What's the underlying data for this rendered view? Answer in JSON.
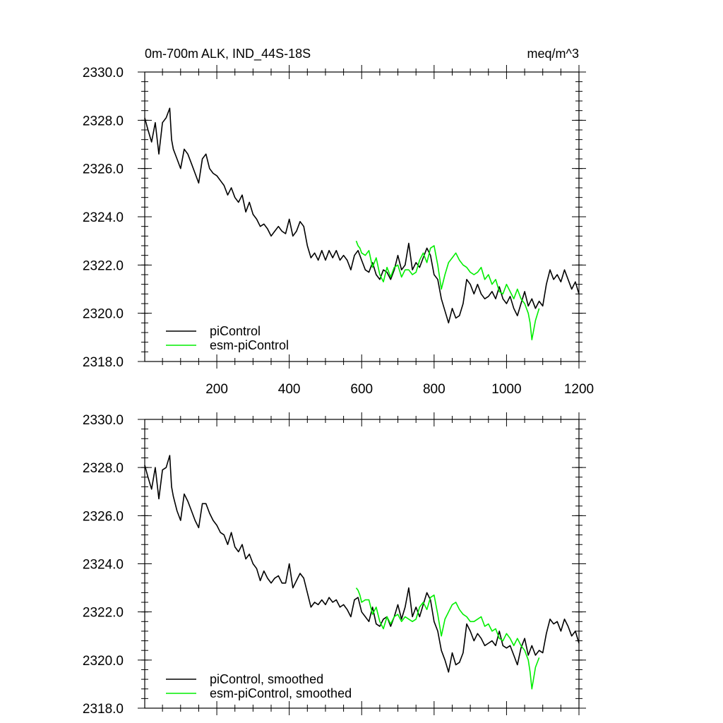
{
  "chart_data": [
    {
      "type": "line",
      "title": "0m-700m ALK, IND_44S-18S",
      "units": "meq/m^3",
      "xlim": [
        1,
        1200
      ],
      "ylim": [
        2318.0,
        2330.0
      ],
      "x_ticks": [
        200,
        400,
        600,
        800,
        1000,
        1200
      ],
      "y_ticks": [
        "2318.0",
        "2320.0",
        "2322.0",
        "2324.0",
        "2326.0",
        "2328.0",
        "2330.0"
      ],
      "grid": false,
      "legend_position": "bottom-left",
      "series": [
        {
          "name": "piControl",
          "color": "#000000",
          "x": [
            1,
            10,
            20,
            30,
            40,
            50,
            60,
            70,
            75,
            80,
            90,
            100,
            110,
            120,
            130,
            140,
            150,
            160,
            170,
            180,
            190,
            200,
            210,
            220,
            230,
            240,
            250,
            260,
            270,
            280,
            290,
            300,
            310,
            320,
            330,
            340,
            350,
            360,
            370,
            380,
            390,
            400,
            410,
            420,
            430,
            440,
            450,
            460,
            470,
            480,
            490,
            500,
            510,
            520,
            530,
            540,
            550,
            560,
            570,
            580,
            590,
            600,
            610,
            620,
            630,
            640,
            650,
            660,
            670,
            680,
            690,
            700,
            710,
            720,
            730,
            740,
            750,
            760,
            770,
            780,
            790,
            800,
            810,
            820,
            830,
            840,
            850,
            860,
            870,
            880,
            890,
            900,
            910,
            920,
            930,
            940,
            950,
            960,
            970,
            980,
            990,
            1000,
            1010,
            1020,
            1030,
            1040,
            1050,
            1060,
            1070,
            1080,
            1090,
            1100,
            1110,
            1120,
            1130,
            1140,
            1150,
            1160,
            1170,
            1180,
            1190,
            1200
          ],
          "y": [
            2328.1,
            2327.6,
            2327.1,
            2327.9,
            2326.6,
            2327.9,
            2328.1,
            2328.5,
            2327.2,
            2326.8,
            2326.4,
            2326.0,
            2326.8,
            2326.6,
            2326.2,
            2325.8,
            2325.4,
            2326.4,
            2326.6,
            2326.0,
            2325.8,
            2325.7,
            2325.5,
            2325.3,
            2324.9,
            2325.2,
            2324.8,
            2324.6,
            2324.9,
            2324.2,
            2324.6,
            2324.1,
            2323.9,
            2323.6,
            2323.7,
            2323.5,
            2323.2,
            2323.4,
            2323.6,
            2323.4,
            2323.3,
            2323.9,
            2323.2,
            2323.4,
            2323.8,
            2323.6,
            2322.8,
            2322.3,
            2322.5,
            2322.2,
            2322.6,
            2322.2,
            2322.6,
            2322.3,
            2322.6,
            2322.2,
            2322.4,
            2322.2,
            2321.8,
            2322.4,
            2322.6,
            2322.2,
            2321.8,
            2321.7,
            2322.1,
            2321.6,
            2321.4,
            2321.8,
            2321.7,
            2321.4,
            2321.8,
            2322.4,
            2321.8,
            2322.0,
            2322.9,
            2321.8,
            2322.1,
            2321.9,
            2322.3,
            2322.7,
            2322.4,
            2321.6,
            2321.4,
            2320.6,
            2320.1,
            2319.6,
            2320.2,
            2319.8,
            2319.9,
            2320.4,
            2321.4,
            2321.2,
            2320.8,
            2321.2,
            2320.8,
            2320.6,
            2320.7,
            2320.9,
            2320.6,
            2321.1,
            2320.6,
            2320.4,
            2320.7,
            2320.2,
            2319.9,
            2320.4,
            2320.9,
            2320.3,
            2320.6,
            2320.2,
            2320.5,
            2320.3,
            2321.2,
            2321.8,
            2321.4,
            2321.6,
            2321.3,
            2321.8,
            2321.4,
            2321.0,
            2321.3,
            2320.8
          ]
        },
        {
          "name": "esm-piControl",
          "color": "#00ee00",
          "x": [
            585,
            590,
            595,
            600,
            610,
            620,
            630,
            640,
            650,
            660,
            670,
            680,
            690,
            700,
            710,
            720,
            730,
            740,
            750,
            760,
            770,
            780,
            790,
            800,
            810,
            820,
            830,
            840,
            850,
            860,
            870,
            880,
            890,
            900,
            910,
            920,
            930,
            940,
            950,
            960,
            970,
            980,
            990,
            1000,
            1010,
            1020,
            1030,
            1040,
            1050,
            1060,
            1065,
            1070,
            1080,
            1090
          ],
          "y": [
            2323.0,
            2322.8,
            2322.7,
            2322.5,
            2322.4,
            2322.6,
            2321.9,
            2322.3,
            2321.6,
            2321.3,
            2321.9,
            2321.5,
            2321.9,
            2322.0,
            2321.5,
            2321.8,
            2321.8,
            2321.6,
            2321.7,
            2322.2,
            2322.5,
            2322.1,
            2322.7,
            2322.8,
            2322.0,
            2321.0,
            2321.6,
            2322.1,
            2322.3,
            2322.5,
            2322.2,
            2322.0,
            2321.9,
            2321.7,
            2321.6,
            2321.7,
            2321.9,
            2321.4,
            2321.6,
            2321.2,
            2321.4,
            2320.9,
            2320.8,
            2321.2,
            2320.9,
            2320.6,
            2321.0,
            2320.6,
            2320.4,
            2320.0,
            2319.6,
            2318.9,
            2319.7,
            2320.2
          ]
        }
      ]
    },
    {
      "type": "line",
      "xlim": [
        1,
        1200
      ],
      "ylim": [
        2318.0,
        2330.0
      ],
      "y_ticks": [
        "2318.0",
        "2320.0",
        "2322.0",
        "2324.0",
        "2326.0",
        "2328.0",
        "2330.0"
      ],
      "grid": false,
      "legend_position": "bottom-left",
      "series": [
        {
          "name": "piControl, smoothed",
          "color": "#000000",
          "x": [
            1,
            10,
            20,
            30,
            40,
            50,
            60,
            70,
            75,
            80,
            90,
            100,
            110,
            120,
            130,
            140,
            150,
            160,
            170,
            180,
            190,
            200,
            210,
            220,
            230,
            240,
            250,
            260,
            270,
            280,
            290,
            300,
            310,
            320,
            330,
            340,
            350,
            360,
            370,
            380,
            390,
            400,
            410,
            420,
            430,
            440,
            450,
            460,
            470,
            480,
            490,
            500,
            510,
            520,
            530,
            540,
            550,
            560,
            570,
            580,
            590,
            600,
            610,
            620,
            630,
            640,
            650,
            660,
            670,
            680,
            690,
            700,
            710,
            720,
            730,
            740,
            750,
            760,
            770,
            780,
            790,
            800,
            810,
            820,
            830,
            840,
            850,
            860,
            870,
            880,
            890,
            900,
            910,
            920,
            930,
            940,
            950,
            960,
            970,
            980,
            990,
            1000,
            1010,
            1020,
            1030,
            1040,
            1050,
            1060,
            1070,
            1080,
            1090,
            1100,
            1110,
            1120,
            1130,
            1140,
            1150,
            1160,
            1170,
            1180,
            1190,
            1200
          ],
          "y": [
            2328.1,
            2327.6,
            2327.1,
            2328.0,
            2326.7,
            2327.9,
            2328.0,
            2328.5,
            2327.2,
            2326.8,
            2326.2,
            2325.8,
            2326.9,
            2326.6,
            2326.2,
            2325.8,
            2325.5,
            2326.5,
            2326.5,
            2326.1,
            2325.8,
            2325.6,
            2325.3,
            2325.2,
            2324.8,
            2325.3,
            2324.7,
            2324.5,
            2324.8,
            2324.2,
            2324.4,
            2324.0,
            2323.8,
            2323.3,
            2323.7,
            2323.4,
            2323.2,
            2323.4,
            2323.5,
            2323.2,
            2323.2,
            2324.0,
            2323.0,
            2323.3,
            2323.6,
            2323.4,
            2322.8,
            2322.2,
            2322.4,
            2322.3,
            2322.5,
            2322.3,
            2322.6,
            2322.4,
            2322.5,
            2322.2,
            2322.3,
            2322.1,
            2321.8,
            2322.5,
            2322.6,
            2322.0,
            2321.8,
            2321.6,
            2322.2,
            2321.5,
            2321.4,
            2321.7,
            2321.8,
            2321.4,
            2321.8,
            2322.3,
            2321.7,
            2322.2,
            2323.0,
            2321.8,
            2322.2,
            2321.8,
            2322.3,
            2322.8,
            2322.5,
            2321.6,
            2321.2,
            2320.4,
            2320.0,
            2319.5,
            2320.3,
            2319.8,
            2319.9,
            2320.3,
            2321.5,
            2321.2,
            2320.8,
            2321.1,
            2320.9,
            2320.6,
            2320.7,
            2320.8,
            2320.6,
            2321.2,
            2320.6,
            2320.5,
            2320.6,
            2320.2,
            2319.8,
            2320.5,
            2320.9,
            2320.2,
            2320.6,
            2320.2,
            2320.4,
            2320.3,
            2321.1,
            2321.7,
            2321.5,
            2321.6,
            2321.2,
            2321.7,
            2321.4,
            2321.0,
            2321.2,
            2320.7
          ]
        },
        {
          "name": "esm-piControl, smoothed",
          "color": "#00ee00",
          "x": [
            585,
            590,
            595,
            600,
            610,
            620,
            630,
            640,
            650,
            660,
            670,
            680,
            690,
            700,
            710,
            720,
            730,
            740,
            750,
            760,
            770,
            780,
            790,
            800,
            810,
            820,
            830,
            840,
            850,
            860,
            870,
            880,
            890,
            900,
            910,
            920,
            930,
            940,
            950,
            960,
            970,
            980,
            990,
            1000,
            1010,
            1020,
            1030,
            1040,
            1050,
            1060,
            1065,
            1070,
            1080,
            1090
          ],
          "y": [
            2323.0,
            2322.9,
            2322.7,
            2322.4,
            2322.5,
            2322.5,
            2321.9,
            2322.2,
            2321.6,
            2321.3,
            2321.8,
            2321.5,
            2321.8,
            2321.9,
            2321.6,
            2321.8,
            2321.7,
            2321.6,
            2321.7,
            2322.2,
            2322.4,
            2322.1,
            2322.6,
            2322.7,
            2321.9,
            2321.0,
            2321.7,
            2322.0,
            2322.3,
            2322.4,
            2322.1,
            2321.9,
            2321.8,
            2321.6,
            2321.6,
            2321.7,
            2321.8,
            2321.4,
            2321.5,
            2321.2,
            2321.3,
            2320.9,
            2320.8,
            2321.1,
            2320.9,
            2320.6,
            2320.9,
            2320.6,
            2320.4,
            2320.0,
            2319.5,
            2318.8,
            2319.7,
            2320.1
          ]
        }
      ]
    }
  ]
}
